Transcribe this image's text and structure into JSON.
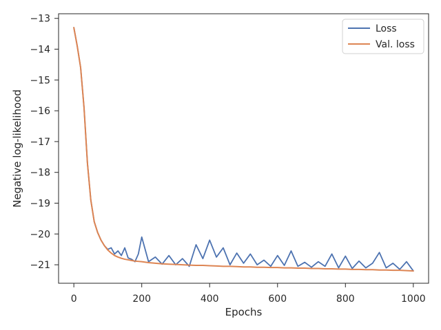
{
  "chart_data": {
    "type": "line",
    "title": "",
    "xlabel": "Epochs",
    "ylabel": "Negative log-likelihood",
    "xlim": [
      -45,
      1045
    ],
    "ylim": [
      -21.6,
      -12.85
    ],
    "xticks": [
      0,
      200,
      400,
      600,
      800,
      1000
    ],
    "yticks": [
      -21,
      -20,
      -19,
      -18,
      -17,
      -16,
      -15,
      -14,
      -13
    ],
    "xtick_labels": [
      "0",
      "200",
      "400",
      "600",
      "800",
      "1000"
    ],
    "ytick_labels": [
      "−21",
      "−20",
      "−19",
      "−18",
      "−17",
      "−16",
      "−15",
      "−14",
      "−13"
    ],
    "grid": false,
    "legend_position": "upper right",
    "series": [
      {
        "name": "Loss",
        "color": "#4c72b0",
        "x": [
          0,
          10,
          20,
          30,
          40,
          50,
          60,
          70,
          80,
          90,
          100,
          110,
          120,
          130,
          140,
          150,
          160,
          170,
          180,
          190,
          200,
          220,
          240,
          260,
          280,
          300,
          320,
          340,
          360,
          380,
          400,
          420,
          440,
          460,
          480,
          500,
          520,
          540,
          560,
          580,
          600,
          620,
          640,
          660,
          680,
          700,
          720,
          740,
          760,
          780,
          800,
          820,
          840,
          860,
          880,
          900,
          920,
          940,
          960,
          980,
          1000
        ],
        "values": [
          -13.3,
          -13.9,
          -14.6,
          -15.9,
          -17.7,
          -18.9,
          -19.6,
          -19.95,
          -20.2,
          -20.38,
          -20.5,
          -20.45,
          -20.65,
          -20.55,
          -20.7,
          -20.45,
          -20.78,
          -20.82,
          -20.9,
          -20.65,
          -20.1,
          -20.9,
          -20.75,
          -20.98,
          -20.7,
          -21.0,
          -20.8,
          -21.05,
          -20.35,
          -20.8,
          -20.2,
          -20.75,
          -20.45,
          -21.0,
          -20.62,
          -20.95,
          -20.65,
          -21.0,
          -20.85,
          -21.05,
          -20.7,
          -21.02,
          -20.55,
          -21.05,
          -20.92,
          -21.08,
          -20.9,
          -21.05,
          -20.65,
          -21.1,
          -20.72,
          -21.12,
          -20.88,
          -21.1,
          -20.95,
          -20.6,
          -21.1,
          -20.95,
          -21.15,
          -20.9,
          -21.2
        ]
      },
      {
        "name": "Val. loss",
        "color": "#dd8452",
        "x": [
          0,
          10,
          20,
          30,
          40,
          50,
          60,
          70,
          80,
          90,
          100,
          110,
          120,
          130,
          140,
          150,
          160,
          170,
          180,
          190,
          200,
          220,
          240,
          260,
          280,
          300,
          320,
          340,
          360,
          380,
          400,
          420,
          440,
          460,
          480,
          500,
          520,
          540,
          560,
          580,
          600,
          620,
          640,
          660,
          680,
          700,
          720,
          740,
          760,
          780,
          800,
          820,
          840,
          860,
          880,
          900,
          920,
          940,
          960,
          980,
          1000
        ],
        "values": [
          -13.3,
          -13.9,
          -14.6,
          -15.9,
          -17.7,
          -18.9,
          -19.6,
          -19.95,
          -20.2,
          -20.38,
          -20.52,
          -20.62,
          -20.7,
          -20.75,
          -20.79,
          -20.82,
          -20.84,
          -20.86,
          -20.88,
          -20.89,
          -20.9,
          -20.93,
          -20.95,
          -20.97,
          -20.98,
          -20.99,
          -21.0,
          -21.01,
          -21.02,
          -21.02,
          -21.03,
          -21.04,
          -21.05,
          -21.05,
          -21.06,
          -21.07,
          -21.07,
          -21.08,
          -21.08,
          -21.09,
          -21.09,
          -21.1,
          -21.1,
          -21.11,
          -21.11,
          -21.12,
          -21.12,
          -21.13,
          -21.13,
          -21.14,
          -21.14,
          -21.15,
          -21.15,
          -21.16,
          -21.16,
          -21.17,
          -21.17,
          -21.18,
          -21.18,
          -21.19,
          -21.2
        ]
      }
    ]
  }
}
